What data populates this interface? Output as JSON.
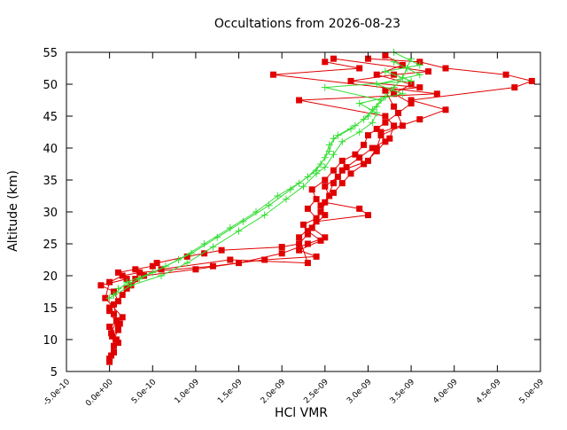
{
  "chart_data": {
    "type": "scatter",
    "title": "Occultations from 2026-08-23",
    "xlabel": "HCl VMR",
    "ylabel": "Altitude (km)",
    "xlim": [
      -5e-10,
      5e-09
    ],
    "ylim": [
      5,
      55
    ],
    "x_ticks": [
      -5e-10,
      0,
      5e-10,
      1e-09,
      1.5e-09,
      2e-09,
      2.5e-09,
      3e-09,
      3.5e-09,
      4e-09,
      4.5e-09,
      5e-09
    ],
    "x_tick_labels": [
      "-5.0e-10",
      "0.0e+00",
      "5.0e-10",
      "1.0e-09",
      "1.5e-09",
      "2.0e-09",
      "2.5e-09",
      "3.0e-09",
      "3.5e-09",
      "4.0e-09",
      "4.5e-09",
      "5.0e-09"
    ],
    "y_ticks": [
      5,
      10,
      15,
      20,
      25,
      30,
      35,
      40,
      45,
      50,
      55
    ],
    "y_tick_labels": [
      "5",
      "10",
      "15",
      "20",
      "25",
      "30",
      "35",
      "40",
      "45",
      "50",
      "55"
    ],
    "grid": false,
    "colors": {
      "profile_red": "#e00000",
      "profile_green": "#33dd33",
      "axis": "#000000"
    },
    "series": [
      {
        "marker": "square",
        "color": "#e00000",
        "points": [
          [
            0.0,
            6.5
          ],
          [
            2e-11,
            7.5
          ],
          [
            5e-11,
            9.0
          ],
          [
            3e-11,
            10.5
          ],
          [
            1e-10,
            11.5
          ],
          [
            1.2e-10,
            12.5
          ],
          [
            5e-11,
            14.0
          ],
          [
            0.0,
            15.0
          ],
          [
            1e-10,
            16.0
          ],
          [
            5e-11,
            17.5
          ],
          [
            -1e-10,
            18.5
          ],
          [
            2e-10,
            19.5
          ],
          [
            1e-10,
            20.5
          ],
          [
            3e-10,
            21.0
          ],
          [
            5e-10,
            21.5
          ],
          [
            5.5e-10,
            22.0
          ],
          [
            9e-10,
            23.0
          ],
          [
            1.1e-09,
            23.5
          ],
          [
            1.3e-09,
            24.0
          ],
          [
            2e-09,
            24.5
          ],
          [
            2.2e-09,
            25.0
          ],
          [
            2.3e-09,
            26.5
          ],
          [
            2.25e-09,
            28.0
          ],
          [
            2.4e-09,
            29.0
          ],
          [
            2.3e-09,
            30.5
          ],
          [
            2.4e-09,
            32.0
          ],
          [
            2.35e-09,
            33.5
          ],
          [
            2.5e-09,
            35.0
          ],
          [
            2.6e-09,
            36.5
          ],
          [
            2.7e-09,
            38.0
          ],
          [
            2.85e-09,
            39.0
          ],
          [
            2.95e-09,
            40.5
          ],
          [
            3e-09,
            42.0
          ],
          [
            3.1e-09,
            43.0
          ],
          [
            3.2e-09,
            44.0
          ],
          [
            3.35e-09,
            45.5
          ],
          [
            3.5e-09,
            47.0
          ],
          [
            3.3e-09,
            48.5
          ],
          [
            3.5e-09,
            50.0
          ],
          [
            3.1e-09,
            51.5
          ],
          [
            3.4e-09,
            53.0
          ],
          [
            3.2e-09,
            54.5
          ]
        ]
      },
      {
        "marker": "square",
        "color": "#e00000",
        "points": [
          [
            5e-11,
            8.0
          ],
          [
            8e-11,
            10.0
          ],
          [
            0.0,
            12.0
          ],
          [
            1.5e-10,
            13.5
          ],
          [
            -5e-11,
            16.5
          ],
          [
            0.0,
            19.0
          ],
          [
            1.5e-10,
            20.0
          ],
          [
            3.5e-10,
            20.5
          ],
          [
            1.2e-09,
            21.5
          ],
          [
            1.8e-09,
            22.5
          ],
          [
            2.4e-09,
            23.0
          ],
          [
            2.2e-09,
            24.0
          ],
          [
            2.45e-09,
            25.5
          ],
          [
            2.3e-09,
            27.0
          ],
          [
            2.5e-09,
            29.5
          ],
          [
            2.45e-09,
            31.0
          ],
          [
            2.6e-09,
            33.0
          ],
          [
            2.7e-09,
            34.5
          ],
          [
            2.8e-09,
            36.0
          ],
          [
            2.95e-09,
            37.5
          ],
          [
            3.1e-09,
            39.5
          ],
          [
            3.2e-09,
            41.0
          ],
          [
            3.15e-09,
            42.5
          ],
          [
            3.6e-09,
            44.5
          ],
          [
            3.9e-09,
            46.0
          ],
          [
            3.5e-09,
            47.5
          ],
          [
            4.7e-09,
            49.5
          ],
          [
            4.9e-09,
            50.5
          ],
          [
            4.6e-09,
            51.5
          ],
          [
            3.9e-09,
            52.5
          ],
          [
            3.6e-09,
            53.5
          ],
          [
            3e-09,
            54.0
          ]
        ]
      },
      {
        "marker": "square",
        "color": "#e00000",
        "points": [
          [
            1e-10,
            9.5
          ],
          [
            2e-11,
            11.0
          ],
          [
            8e-11,
            13.0
          ],
          [
            5e-11,
            15.5
          ],
          [
            1.5e-10,
            17.0
          ],
          [
            2.5e-10,
            18.5
          ],
          [
            4e-10,
            20.0
          ],
          [
            1e-09,
            21.0
          ],
          [
            1.5e-09,
            22.0
          ],
          [
            2e-09,
            23.5
          ],
          [
            2.3e-09,
            25.0
          ],
          [
            2.5e-09,
            26.0
          ],
          [
            2.35e-09,
            27.5
          ],
          [
            2.45e-09,
            30.0
          ],
          [
            2.55e-09,
            32.5
          ],
          [
            2.5e-09,
            34.0
          ],
          [
            2.65e-09,
            35.5
          ],
          [
            2.75e-09,
            37.0
          ],
          [
            2.9e-09,
            38.5
          ],
          [
            3.05e-09,
            40.0
          ],
          [
            3.25e-09,
            41.5
          ],
          [
            3.3e-09,
            43.5
          ],
          [
            3.2e-09,
            45.0
          ],
          [
            2.2e-09,
            47.5
          ],
          [
            3.8e-09,
            48.5
          ],
          [
            1.9e-09,
            51.5
          ],
          [
            2.9e-09,
            52.5
          ],
          [
            2.5e-09,
            53.5
          ]
        ]
      },
      {
        "marker": "square",
        "color": "#e00000",
        "points": [
          [
            0.0,
            7.0
          ],
          [
            1e-10,
            12.0
          ],
          [
            0.0,
            14.5
          ],
          [
            2e-10,
            18.0
          ],
          [
            3e-10,
            19.5
          ],
          [
            6e-10,
            21.0
          ],
          [
            1.4e-09,
            22.5
          ],
          [
            2.3e-09,
            22.0
          ],
          [
            2.2e-09,
            26.0
          ],
          [
            2.4e-09,
            28.5
          ],
          [
            3e-09,
            29.5
          ],
          [
            2.9e-09,
            30.5
          ],
          [
            2.5e-09,
            31.5
          ],
          [
            2.6e-09,
            34.5
          ],
          [
            2.7e-09,
            36.5
          ],
          [
            3e-09,
            38.0
          ],
          [
            3.1e-09,
            40.0
          ],
          [
            3.15e-09,
            42.0
          ],
          [
            3.4e-09,
            43.5
          ],
          [
            3.3e-09,
            46.5
          ],
          [
            3.2e-09,
            49.0
          ],
          [
            3.6e-09,
            49.5
          ],
          [
            2.8e-09,
            50.5
          ],
          [
            3.3e-09,
            51.5
          ],
          [
            3.7e-09,
            52.0
          ],
          [
            2.6e-09,
            54.0
          ]
        ]
      },
      {
        "marker": "plus",
        "color": "#33dd33",
        "points": [
          [
            5e-11,
            17.0
          ],
          [
            2e-10,
            19.0
          ],
          [
            5e-10,
            20.5
          ],
          [
            8e-10,
            22.5
          ],
          [
            1.1e-09,
            25.0
          ],
          [
            1.4e-09,
            27.5
          ],
          [
            1.7e-09,
            30.0
          ],
          [
            1.95e-09,
            32.5
          ],
          [
            2.2e-09,
            34.5
          ],
          [
            2.4e-09,
            36.5
          ],
          [
            2.5e-09,
            38.5
          ],
          [
            2.55e-09,
            40.5
          ],
          [
            2.65e-09,
            42.0
          ],
          [
            2.85e-09,
            43.5
          ],
          [
            3e-09,
            45.0
          ],
          [
            3.1e-09,
            46.5
          ],
          [
            3.2e-09,
            48.0
          ],
          [
            3.3e-09,
            49.5
          ],
          [
            3.4e-09,
            51.0
          ],
          [
            3.45e-09,
            52.5
          ],
          [
            3.5e-09,
            54.0
          ]
        ]
      },
      {
        "marker": "plus",
        "color": "#33dd33",
        "points": [
          [
            1e-10,
            18.0
          ],
          [
            3.5e-10,
            19.5
          ],
          [
            6.5e-10,
            21.5
          ],
          [
            9.5e-10,
            23.5
          ],
          [
            1.25e-09,
            26.0
          ],
          [
            1.55e-09,
            28.5
          ],
          [
            1.85e-09,
            31.0
          ],
          [
            2.1e-09,
            33.5
          ],
          [
            2.3e-09,
            35.5
          ],
          [
            2.45e-09,
            37.5
          ],
          [
            2.55e-09,
            39.5
          ],
          [
            2.6e-09,
            41.5
          ],
          [
            2.8e-09,
            43.0
          ],
          [
            2.95e-09,
            44.5
          ],
          [
            3.05e-09,
            46.0
          ],
          [
            3.15e-09,
            47.5
          ],
          [
            2.5e-09,
            49.5
          ],
          [
            3.5e-09,
            50.5
          ],
          [
            3.2e-09,
            52.0
          ],
          [
            3.6e-09,
            53.0
          ],
          [
            3.3e-09,
            55.0
          ]
        ]
      },
      {
        "marker": "plus",
        "color": "#33dd33",
        "points": [
          [
            0.0,
            16.5
          ],
          [
            2.5e-10,
            18.5
          ],
          [
            6e-10,
            20.0
          ],
          [
            9e-10,
            22.0
          ],
          [
            1.2e-09,
            24.5
          ],
          [
            1.5e-09,
            27.0
          ],
          [
            1.8e-09,
            29.5
          ],
          [
            2.05e-09,
            32.0
          ],
          [
            2.25e-09,
            34.0
          ],
          [
            2.4e-09,
            36.0
          ],
          [
            2.5e-09,
            37.0
          ],
          [
            2.6e-09,
            39.0
          ],
          [
            2.7e-09,
            41.0
          ],
          [
            2.9e-09,
            42.5
          ],
          [
            3.05e-09,
            44.0
          ],
          [
            3.1e-09,
            45.5
          ],
          [
            2.9e-09,
            47.0
          ],
          [
            3.4e-09,
            48.5
          ],
          [
            3.1e-09,
            50.0
          ],
          [
            3.6e-09,
            51.5
          ],
          [
            3.3e-09,
            53.5
          ]
        ]
      }
    ]
  }
}
